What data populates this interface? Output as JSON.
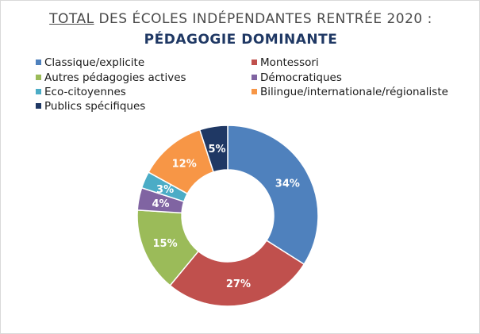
{
  "title": {
    "prefix": "TOTAL",
    "rest": " DES ÉCOLES INDÉPENDANTES RENTRÉE 2020 :",
    "subtitle": "PÉDAGOGIE DOMINANTE"
  },
  "chart_data": {
    "type": "pie",
    "subtype": "donut",
    "legend_position": "top",
    "categories": [
      "Classique/explicite",
      "Montessori",
      "Autres pédagogies actives",
      "Démocratiques",
      "Eco-citoyennes",
      "Bilingue/internationale/régionaliste",
      "Publics spécifiques"
    ],
    "values": [
      34,
      27,
      15,
      4,
      3,
      12,
      5
    ],
    "labels": [
      "34%",
      "27%",
      "15%",
      "4%",
      "3%",
      "12%",
      "5%"
    ],
    "colors": [
      "#4f81bd",
      "#c0504d",
      "#9bbb59",
      "#8064a2",
      "#4bacc6",
      "#f79646",
      "#1f3864"
    ]
  }
}
